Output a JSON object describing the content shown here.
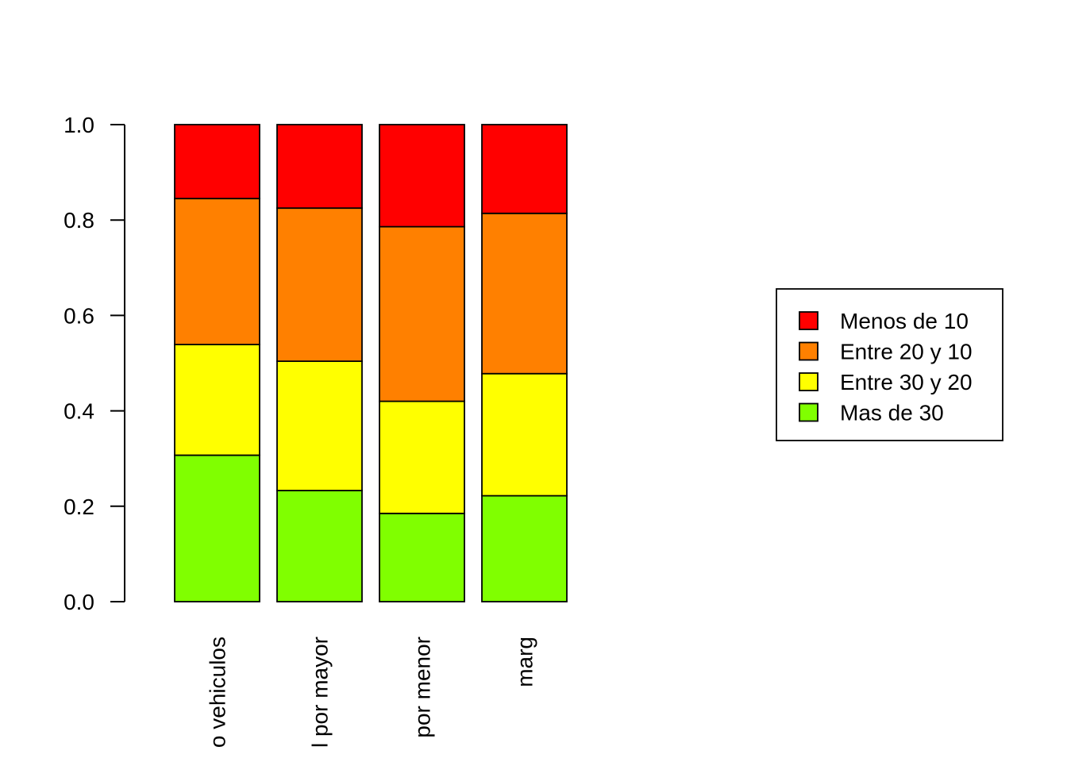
{
  "chart_data": {
    "type": "bar",
    "stacked": true,
    "categories": [
      "o vehiculos",
      "l por mayor",
      "por menor",
      "marg"
    ],
    "series": [
      {
        "name": "Mas de 30",
        "color": "#80FF00",
        "values": [
          0.307,
          0.233,
          0.185,
          0.222
        ]
      },
      {
        "name": "Entre 30 y 20",
        "color": "#FFFF00",
        "values": [
          0.232,
          0.271,
          0.235,
          0.256
        ]
      },
      {
        "name": "Entre 20 y 10",
        "color": "#FF8000",
        "values": [
          0.306,
          0.321,
          0.366,
          0.336
        ]
      },
      {
        "name": "Menos de 10",
        "color": "#FF0000",
        "values": [
          0.155,
          0.175,
          0.214,
          0.186
        ]
      }
    ],
    "yticks": [
      "0.0",
      "0.2",
      "0.4",
      "0.6",
      "0.8",
      "1.0"
    ],
    "ylim": [
      0,
      1
    ],
    "legend_order": [
      "Menos de 10",
      "Entre 20 y 10",
      "Entre 30 y 20",
      "Mas de 30"
    ],
    "legend_position": "right",
    "grid": false
  }
}
